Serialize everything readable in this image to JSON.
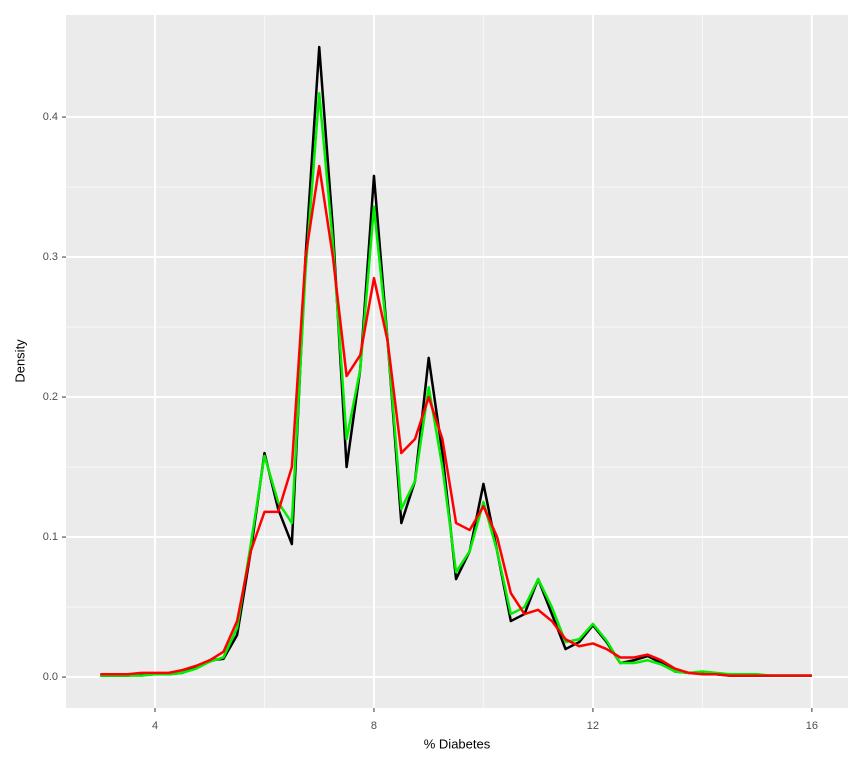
{
  "chart_data": {
    "type": "line",
    "xlabel": "% Diabetes",
    "ylabel": "Density",
    "x": [
      3,
      3.25,
      3.5,
      3.75,
      4,
      4.25,
      4.5,
      4.75,
      5,
      5.25,
      5.5,
      5.75,
      6,
      6.25,
      6.5,
      6.75,
      7,
      7.25,
      7.5,
      7.75,
      8,
      8.25,
      8.5,
      8.75,
      9,
      9.25,
      9.5,
      9.75,
      10,
      10.25,
      10.5,
      10.75,
      11,
      11.25,
      11.5,
      11.75,
      12,
      12.25,
      12.5,
      12.75,
      13,
      13.25,
      13.5,
      13.75,
      14,
      14.25,
      14.5,
      14.75,
      15,
      15.25,
      15.5,
      15.75,
      16
    ],
    "series": [
      {
        "color": "#000000",
        "values": [
          0.001,
          0.001,
          0.001,
          0.002,
          0.002,
          0.002,
          0.003,
          0.007,
          0.012,
          0.013,
          0.03,
          0.09,
          0.16,
          0.12,
          0.095,
          0.3,
          0.45,
          0.32,
          0.15,
          0.22,
          0.358,
          0.24,
          0.11,
          0.14,
          0.228,
          0.16,
          0.07,
          0.09,
          0.138,
          0.09,
          0.04,
          0.045,
          0.07,
          0.045,
          0.02,
          0.025,
          0.037,
          0.025,
          0.01,
          0.012,
          0.015,
          0.01,
          0.004,
          0.003,
          0.003,
          0.002,
          0.001,
          0.001,
          0.001,
          0.001,
          0.001,
          0.001,
          0.001
        ]
      },
      {
        "color": "#00ee00",
        "values": [
          0.001,
          0.001,
          0.001,
          0.001,
          0.002,
          0.002,
          0.003,
          0.006,
          0.011,
          0.014,
          0.035,
          0.095,
          0.158,
          0.125,
          0.11,
          0.29,
          0.417,
          0.31,
          0.17,
          0.22,
          0.336,
          0.24,
          0.12,
          0.14,
          0.207,
          0.15,
          0.075,
          0.09,
          0.125,
          0.09,
          0.045,
          0.05,
          0.07,
          0.05,
          0.025,
          0.027,
          0.038,
          0.026,
          0.01,
          0.01,
          0.012,
          0.009,
          0.004,
          0.003,
          0.004,
          0.003,
          0.002,
          0.002,
          0.002,
          0.001,
          0.001,
          0.001,
          0.001
        ]
      },
      {
        "color": "#ff0000",
        "values": [
          0.002,
          0.002,
          0.002,
          0.003,
          0.003,
          0.003,
          0.005,
          0.008,
          0.012,
          0.018,
          0.04,
          0.09,
          0.118,
          0.118,
          0.15,
          0.3,
          0.365,
          0.3,
          0.215,
          0.23,
          0.285,
          0.24,
          0.16,
          0.17,
          0.2,
          0.17,
          0.11,
          0.105,
          0.122,
          0.1,
          0.06,
          0.045,
          0.048,
          0.04,
          0.027,
          0.022,
          0.024,
          0.02,
          0.014,
          0.014,
          0.016,
          0.012,
          0.006,
          0.003,
          0.002,
          0.002,
          0.001,
          0.001,
          0.001,
          0.001,
          0.001,
          0.001,
          0.001
        ]
      }
    ],
    "xlim": [
      2.374,
      16.66
    ],
    "ylim": [
      -0.0221,
      0.4729
    ],
    "xticks": [
      4,
      8,
      12,
      16
    ],
    "yticks": [
      {
        "value": 0,
        "label": "0.0"
      },
      0.1,
      0.2,
      0.3,
      0.4
    ],
    "grid": true
  }
}
